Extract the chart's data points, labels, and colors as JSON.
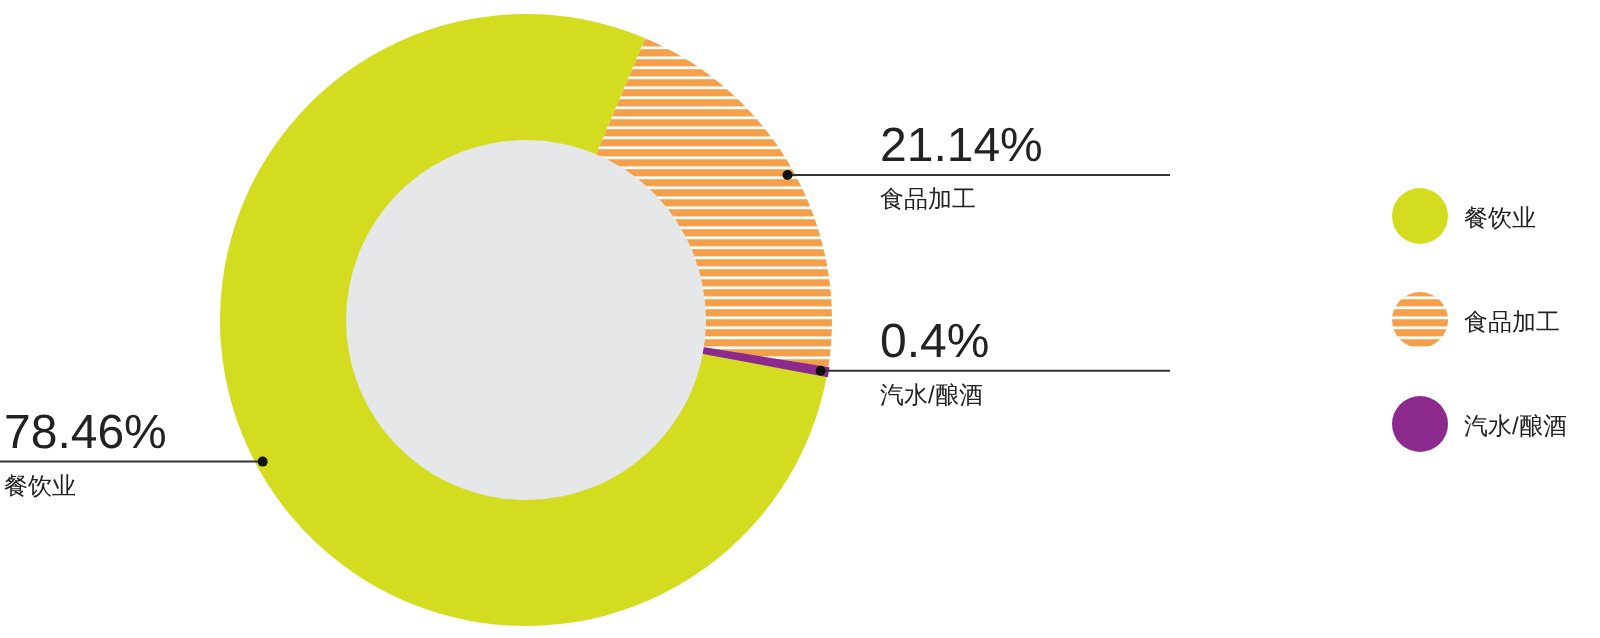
{
  "chart_data": {
    "type": "donut",
    "categories": [
      "餐饮业",
      "食品加工",
      "汽水/酿酒"
    ],
    "values": [
      78.46,
      21.14,
      0.4
    ],
    "colors": [
      "#d3dc1f",
      "#f4a04a",
      "#8c2a8e"
    ],
    "value_labels": [
      "78.46%",
      "21.14%",
      "0.4%"
    ],
    "legend": "right"
  }
}
